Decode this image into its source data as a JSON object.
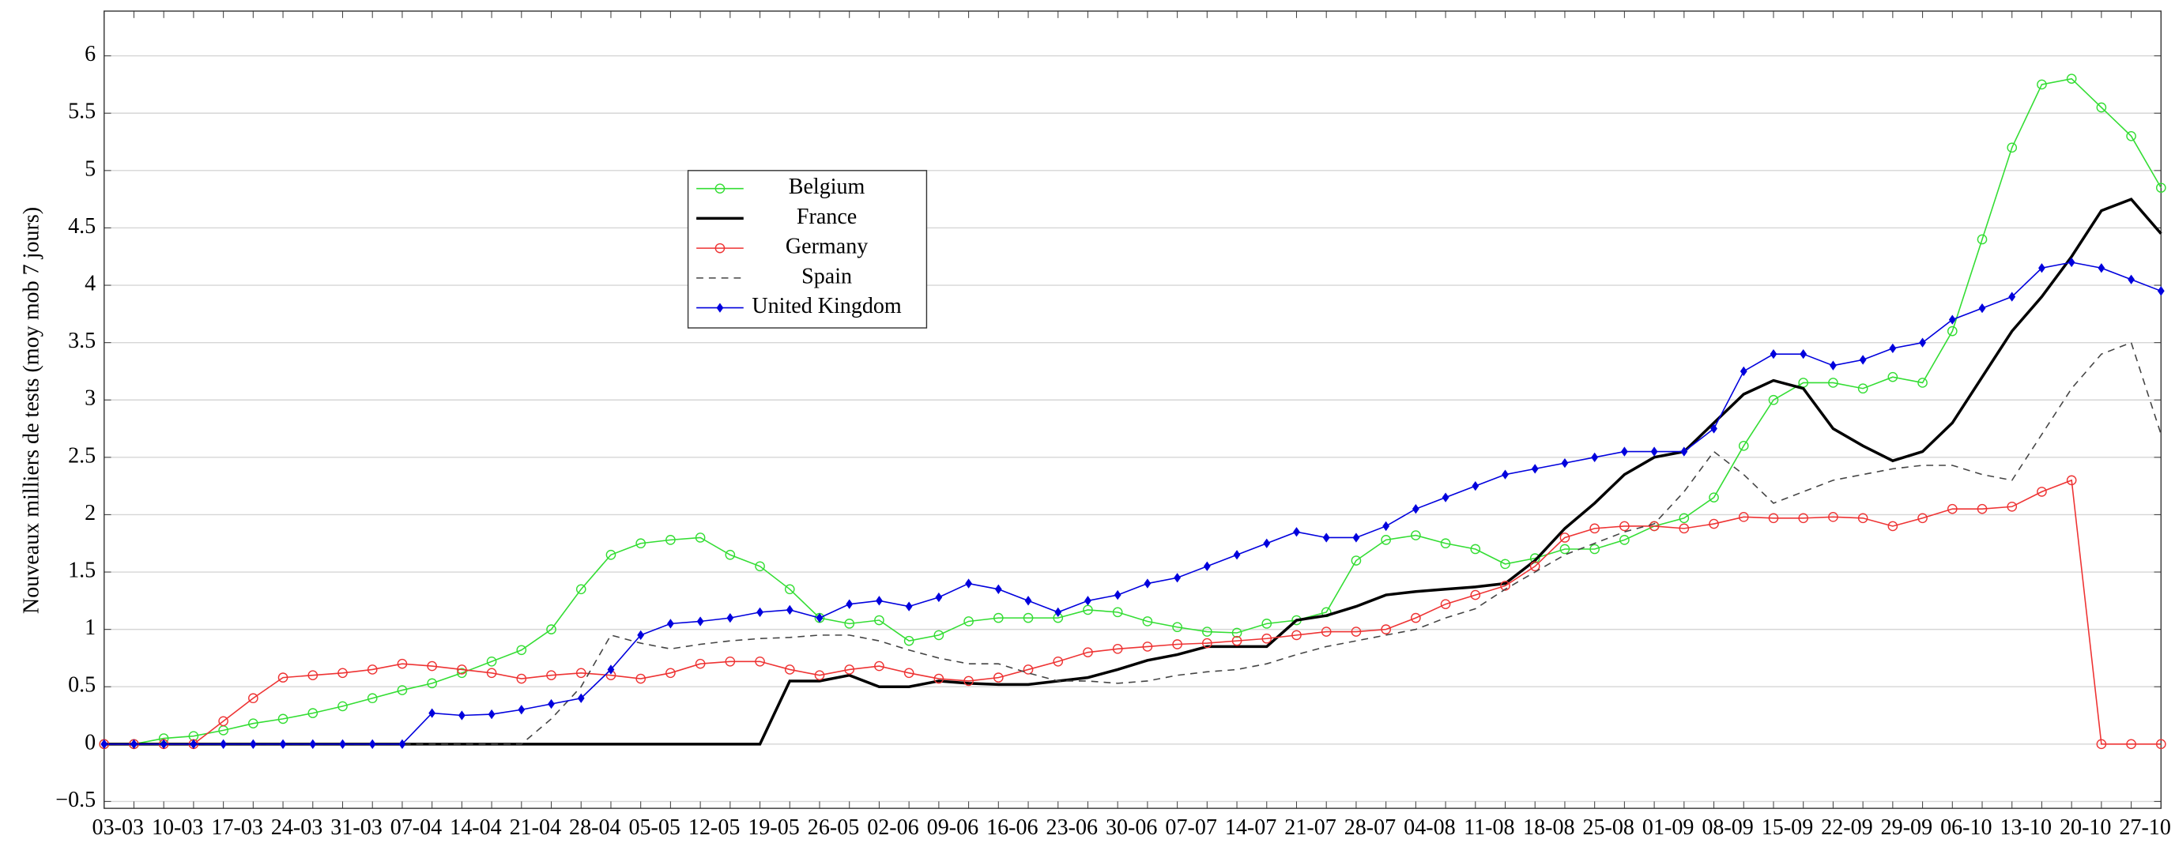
{
  "chart_data": {
    "type": "line",
    "ylabel": "Nouveaux milliers de tests (moy mob 7 jours)",
    "categories": [
      "03-03",
      null,
      "10-03",
      null,
      "17-03",
      null,
      "24-03",
      null,
      "31-03",
      null,
      "07-04",
      null,
      "14-04",
      null,
      "21-04",
      null,
      "28-04",
      null,
      "05-05",
      null,
      "12-05",
      null,
      "19-05",
      null,
      "26-05",
      null,
      "02-06",
      null,
      "09-06",
      null,
      "16-06",
      null,
      "23-06",
      null,
      "30-06",
      null,
      "07-07",
      null,
      "14-07",
      null,
      "21-07",
      null,
      "28-07",
      null,
      "04-08",
      null,
      "11-08",
      null,
      "18-08",
      null,
      "25-08",
      null,
      "01-09",
      null,
      "08-09",
      null,
      "15-09",
      null,
      "22-09",
      null,
      "29-09",
      null,
      "06-10",
      null,
      "13-10",
      null,
      "20-10",
      null,
      "27-10",
      null
    ],
    "ylim": [
      -0.56,
      6.39
    ],
    "yticks": [
      {
        "value": -0.5,
        "label": "−0.5"
      },
      0,
      0.5,
      1,
      1.5,
      2,
      2.5,
      3,
      3.5,
      4,
      4.5,
      5,
      5.5,
      6
    ],
    "grid": true,
    "legend": "upper left",
    "series": [
      {
        "name": "Belgium",
        "color": "#33dd33",
        "marker": "circle",
        "line_style": "solid",
        "values": [
          0,
          0,
          0.05,
          0.07,
          0.12,
          0.18,
          0.22,
          0.27,
          0.33,
          0.4,
          0.47,
          0.53,
          0.62,
          0.72,
          0.82,
          1.0,
          1.35,
          1.65,
          1.75,
          1.78,
          1.8,
          1.65,
          1.55,
          1.35,
          1.1,
          1.05,
          1.08,
          0.9,
          0.95,
          1.07,
          1.1,
          1.1,
          1.1,
          1.17,
          1.15,
          1.07,
          1.02,
          0.98,
          0.97,
          1.05,
          1.08,
          1.15,
          1.6,
          1.78,
          1.82,
          1.75,
          1.7,
          1.57,
          1.62,
          1.7,
          1.7,
          1.78,
          1.9,
          1.97,
          2.15,
          2.6,
          3.0,
          3.15,
          3.15,
          3.1,
          3.2,
          3.15,
          3.6,
          4.4,
          5.2,
          5.75,
          5.8,
          5.55,
          5.3,
          4.85
        ]
      },
      {
        "name": "France",
        "color": "#000000",
        "marker": "none",
        "line_style": "thick",
        "values": [
          0,
          0,
          0,
          0,
          0,
          0,
          0,
          0,
          0,
          0,
          0,
          0,
          0,
          0,
          0,
          0,
          0,
          0,
          0,
          0,
          0,
          0,
          0,
          0.55,
          0.55,
          0.6,
          0.5,
          0.5,
          0.55,
          0.53,
          0.52,
          0.52,
          0.55,
          0.58,
          0.65,
          0.73,
          0.78,
          0.85,
          0.85,
          0.85,
          1.08,
          1.12,
          1.2,
          1.3,
          1.33,
          1.35,
          1.37,
          1.4,
          1.6,
          1.88,
          2.1,
          2.35,
          2.5,
          2.55,
          2.8,
          3.05,
          3.17,
          3.1,
          2.75,
          2.6,
          2.47,
          2.55,
          2.8,
          3.2,
          3.6,
          3.9,
          4.25,
          4.65,
          4.75,
          4.45
        ]
      },
      {
        "name": "Germany",
        "color": "#ee3333",
        "marker": "circle",
        "line_style": "solid",
        "values": [
          0,
          0,
          0,
          0,
          0.2,
          0.4,
          0.58,
          0.6,
          0.62,
          0.65,
          0.7,
          0.68,
          0.65,
          0.62,
          0.57,
          0.6,
          0.62,
          0.6,
          0.57,
          0.62,
          0.7,
          0.72,
          0.72,
          0.65,
          0.6,
          0.65,
          0.68,
          0.62,
          0.57,
          0.55,
          0.58,
          0.65,
          0.72,
          0.8,
          0.83,
          0.85,
          0.87,
          0.88,
          0.9,
          0.92,
          0.95,
          0.98,
          0.98,
          1.0,
          1.1,
          1.22,
          1.3,
          1.38,
          1.55,
          1.8,
          1.88,
          1.9,
          1.9,
          1.88,
          1.92,
          1.98,
          1.97,
          1.97,
          1.98,
          1.97,
          1.9,
          1.97,
          2.05,
          2.05,
          2.07,
          2.2,
          2.3,
          0,
          0,
          0
        ]
      },
      {
        "name": "Spain",
        "color": "#444444",
        "marker": "none",
        "line_style": "dashed",
        "values": [
          0,
          0,
          0,
          0,
          0,
          0,
          0,
          0,
          0,
          0,
          0,
          0,
          0,
          0,
          0,
          0.22,
          0.5,
          0.95,
          0.88,
          0.83,
          0.87,
          0.9,
          0.92,
          0.93,
          0.95,
          0.95,
          0.9,
          0.82,
          0.75,
          0.7,
          0.7,
          0.62,
          0.55,
          0.55,
          0.53,
          0.55,
          0.6,
          0.63,
          0.65,
          0.7,
          0.78,
          0.85,
          0.9,
          0.95,
          1.0,
          1.1,
          1.18,
          1.35,
          1.5,
          1.65,
          1.75,
          1.85,
          1.92,
          2.2,
          2.55,
          2.35,
          2.1,
          2.2,
          2.3,
          2.35,
          2.4,
          2.43,
          2.43,
          2.35,
          2.3,
          2.7,
          3.1,
          3.4,
          3.5,
          2.7
        ]
      },
      {
        "name": "United Kingdom",
        "color": "#0000dd",
        "marker": "diamond",
        "line_style": "solid",
        "values": [
          0,
          0,
          0,
          0,
          0,
          0,
          0,
          0,
          0,
          0,
          0,
          0.27,
          0.25,
          0.26,
          0.3,
          0.35,
          0.4,
          0.65,
          0.95,
          1.05,
          1.07,
          1.1,
          1.15,
          1.17,
          1.1,
          1.22,
          1.25,
          1.2,
          1.28,
          1.4,
          1.35,
          1.25,
          1.15,
          1.25,
          1.3,
          1.4,
          1.45,
          1.55,
          1.65,
          1.75,
          1.85,
          1.8,
          1.8,
          1.9,
          2.05,
          2.15,
          2.25,
          2.35,
          2.4,
          2.45,
          2.5,
          2.55,
          2.55,
          2.55,
          2.75,
          3.25,
          3.4,
          3.4,
          3.3,
          3.35,
          3.45,
          3.5,
          3.7,
          3.8,
          3.9,
          4.15,
          4.2,
          4.15,
          4.05,
          3.95
        ]
      }
    ]
  }
}
